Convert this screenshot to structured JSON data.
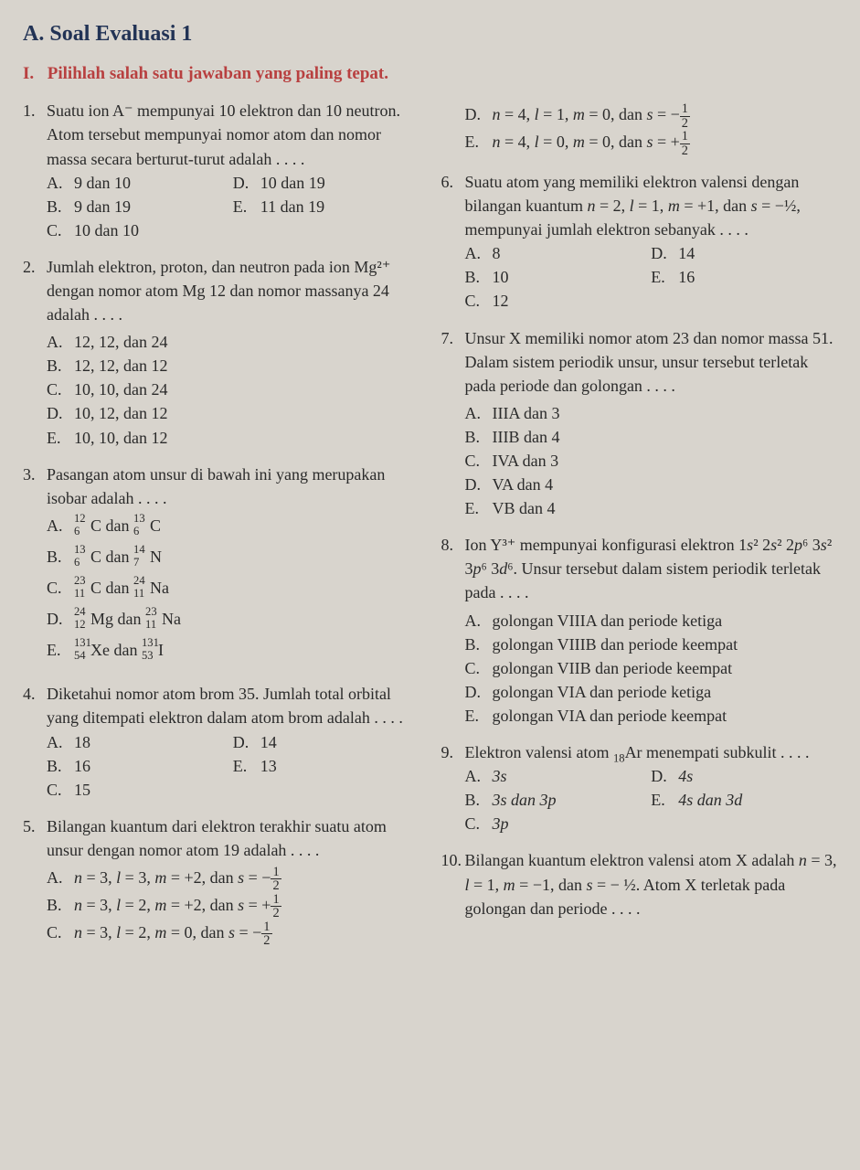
{
  "header": {
    "section_label": "A.",
    "section_title": "Soal Evaluasi 1",
    "instruction_num": "I.",
    "instruction": "Pilihlah salah satu jawaban yang paling tepat."
  },
  "questions": [
    {
      "num": "1.",
      "text": "Suatu ion A⁻ mempunyai 10 elektron dan 10 neutron. Atom tersebut mempunyai nomor atom dan nomor massa secara berturut-turut adalah . . . .",
      "layout": "grid",
      "cols": [
        [
          {
            "l": "A.",
            "t": "9 dan 10"
          },
          {
            "l": "B.",
            "t": "9 dan 19"
          },
          {
            "l": "C.",
            "t": "10 dan 10"
          }
        ],
        [
          {
            "l": "D.",
            "t": "10 dan 19"
          },
          {
            "l": "E.",
            "t": "11 dan 19"
          }
        ]
      ]
    },
    {
      "num": "2.",
      "text": "Jumlah elektron, proton, dan neutron pada ion Mg²⁺ dengan nomor atom Mg 12 dan nomor massanya 24 adalah . . . .",
      "layout": "list",
      "opts": [
        {
          "l": "A.",
          "t": "12, 12, dan 24"
        },
        {
          "l": "B.",
          "t": "12, 12, dan 12"
        },
        {
          "l": "C.",
          "t": "10, 10, dan 24"
        },
        {
          "l": "D.",
          "t": "10, 12, dan 12"
        },
        {
          "l": "E.",
          "t": "10, 10, dan 12"
        }
      ]
    },
    {
      "num": "3.",
      "text": "Pasangan atom unsur di bawah ini yang merupakan isobar adalah . . . .",
      "layout": "isotope",
      "isoOpts": [
        {
          "l": "A.",
          "pair": [
            {
              "m": "12",
              "a": "6",
              "s": "C"
            },
            {
              "m": "13",
              "a": "6",
              "s": "C"
            }
          ]
        },
        {
          "l": "B.",
          "pair": [
            {
              "m": "13",
              "a": "6",
              "s": "C"
            },
            {
              "m": "14",
              "a": "7",
              "s": "N"
            }
          ]
        },
        {
          "l": "C.",
          "pair": [
            {
              "m": "23",
              "a": "11",
              "s": "C"
            },
            {
              "m": "24",
              "a": "11",
              "s": "Na"
            }
          ]
        },
        {
          "l": "D.",
          "pair": [
            {
              "m": "24",
              "a": "12",
              "s": "Mg"
            },
            {
              "m": "23",
              "a": "11",
              "s": "Na"
            }
          ]
        },
        {
          "l": "E.",
          "pair": [
            {
              "m": "131",
              "a": "54",
              "s": "Xe"
            },
            {
              "m": "131",
              "a": "53",
              "s": "I"
            }
          ]
        }
      ]
    },
    {
      "num": "4.",
      "text": "Diketahui nomor atom brom 35. Jumlah total orbital yang ditempati elektron dalam atom brom adalah . . . .",
      "layout": "grid",
      "cols": [
        [
          {
            "l": "A.",
            "t": "18"
          },
          {
            "l": "B.",
            "t": "16"
          },
          {
            "l": "C.",
            "t": "15"
          }
        ],
        [
          {
            "l": "D.",
            "t": "14"
          },
          {
            "l": "E.",
            "t": "13"
          }
        ]
      ]
    },
    {
      "num": "5.",
      "text": "Bilangan kuantum dari elektron terakhir suatu atom unsur dengan nomor atom 19 adalah . . . .",
      "layout": "quantumA",
      "qOpts": [
        {
          "l": "A.",
          "n": "3",
          "el": "3",
          "m": "+2",
          "s": "−",
          "sf": "½"
        },
        {
          "l": "B.",
          "n": "3",
          "el": "2",
          "m": "+2",
          "s": "+",
          "sf": "½"
        },
        {
          "l": "C.",
          "n": "3",
          "el": "2",
          "m": "0",
          "s": "−",
          "sf": "½"
        }
      ]
    },
    {
      "num": "cont5",
      "layout": "quantumB",
      "qOpts": [
        {
          "l": "D.",
          "n": "4",
          "el": "1",
          "m": "0",
          "s": "−",
          "sf": "½"
        },
        {
          "l": "E.",
          "n": "4",
          "el": "0",
          "m": "0",
          "s": "+",
          "sf": "½"
        }
      ]
    },
    {
      "num": "6.",
      "text_html": "Suatu atom yang memiliki elektron valensi dengan bilangan kuantum <i>n</i> = 2, <i>l</i> = 1, <i>m</i> = +1, dan <i>s</i> = −½, mempunyai jumlah elektron sebanyak . . . .",
      "layout": "grid",
      "cols": [
        [
          {
            "l": "A.",
            "t": "8"
          },
          {
            "l": "B.",
            "t": "10"
          },
          {
            "l": "C.",
            "t": "12"
          }
        ],
        [
          {
            "l": "D.",
            "t": "14"
          },
          {
            "l": "E.",
            "t": "16"
          }
        ]
      ]
    },
    {
      "num": "7.",
      "text": "Unsur X memiliki nomor atom 23 dan nomor massa 51. Dalam sistem periodik unsur, unsur tersebut terletak pada periode dan golongan . . . .",
      "layout": "list",
      "opts": [
        {
          "l": "A.",
          "t": "IIIA dan 3"
        },
        {
          "l": "B.",
          "t": "IIIB dan 4"
        },
        {
          "l": "C.",
          "t": "IVA dan 3"
        },
        {
          "l": "D.",
          "t": "VA dan 4"
        },
        {
          "l": "E.",
          "t": "VB dan 4"
        }
      ]
    },
    {
      "num": "8.",
      "text_html": "Ion Y³⁺ mempunyai konfigurasi elektron 1<i>s</i>² 2<i>s</i>² 2<i>p</i>⁶ 3<i>s</i>² 3<i>p</i>⁶ 3<i>d</i>⁶. Unsur tersebut dalam sistem periodik terletak pada . . . .",
      "layout": "list",
      "opts": [
        {
          "l": "A.",
          "t": "golongan VIIIA dan periode ketiga"
        },
        {
          "l": "B.",
          "t": "golongan VIIIB dan periode keempat"
        },
        {
          "l": "C.",
          "t": "golongan VIIB dan periode keempat"
        },
        {
          "l": "D.",
          "t": "golongan VIA dan periode ketiga"
        },
        {
          "l": "E.",
          "t": "golongan VIA dan periode keempat"
        }
      ]
    },
    {
      "num": "9.",
      "text_html": "Elektron valensi atom <sub>18</sub>Ar menempati subkulit . . . .",
      "layout": "grid-italic",
      "cols": [
        [
          {
            "l": "A.",
            "t": "3s"
          },
          {
            "l": "B.",
            "t": "3s dan 3p"
          },
          {
            "l": "C.",
            "t": "3p"
          }
        ],
        [
          {
            "l": "D.",
            "t": "4s"
          },
          {
            "l": "E.",
            "t": "4s dan 3d"
          }
        ]
      ]
    },
    {
      "num": "10.",
      "text_html": "Bilangan kuantum elektron valensi atom X adalah <i>n</i> = 3, <i>l</i> = 1, <i>m</i> = −1, dan <i>s</i> = − ½. Atom X terletak pada golongan dan periode . . . .",
      "layout": "none"
    }
  ],
  "words": {
    "dan": "dan"
  }
}
